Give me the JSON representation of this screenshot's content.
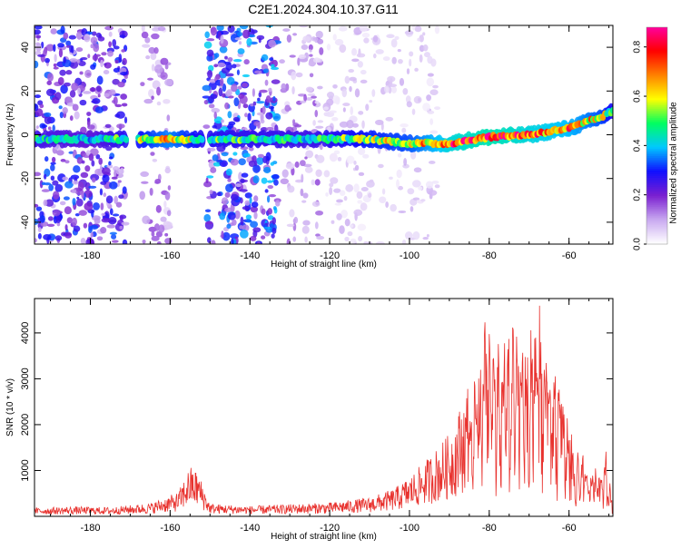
{
  "title": "C2E1.2024.304.10.37.G11",
  "chart_data": [
    {
      "type": "heatmap",
      "xlabel": "Height of straight line (km)",
      "ylabel": "Frequency (Hz)",
      "xlim": [
        -194,
        -49
      ],
      "ylim": [
        -50,
        50
      ],
      "x_ticks": [
        -180,
        -160,
        -140,
        -120,
        -100,
        -80,
        -60
      ],
      "y_ticks": [
        -40,
        -20,
        0,
        20,
        40
      ],
      "colorbar": {
        "label": "Normalized spectral amplitude",
        "range": [
          0,
          0.88
        ],
        "ticks": [
          0.0,
          0.2,
          0.4,
          0.6,
          0.8
        ],
        "colors": [
          "#ffffff",
          "#c8a8f0",
          "#7a1fd0",
          "#1010ff",
          "#00c8ff",
          "#00ff60",
          "#ffff00",
          "#ff8000",
          "#ff0000",
          "#ff00a0"
        ]
      },
      "ridge": {
        "x": [
          -194,
          -180,
          -170,
          -160,
          -152,
          -125,
          -110,
          -100,
          -90,
          -80,
          -70,
          -60,
          -52,
          -49
        ],
        "frequency": [
          -2,
          -2,
          -2,
          -2,
          -2,
          -2,
          -2,
          -4,
          -4,
          -1,
          0,
          3,
          8,
          11
        ],
        "amplitude": [
          0.45,
          0.4,
          0.5,
          0.65,
          0.5,
          0.45,
          0.55,
          0.6,
          0.75,
          0.8,
          0.75,
          0.7,
          0.6,
          0.5
        ]
      },
      "noise_regions": [
        {
          "x": [
            -194,
            -171
          ],
          "amplitude": 0.3
        },
        {
          "x": [
            -167,
            -160
          ],
          "amplitude": 0.15
        },
        {
          "x": [
            -151,
            -133
          ],
          "amplitude": 0.35
        },
        {
          "x": [
            -132,
            -122
          ],
          "amplitude": 0.15
        },
        {
          "x": [
            -121,
            -93
          ],
          "amplitude": 0.08
        }
      ]
    },
    {
      "type": "line",
      "xlabel": "Height of straight line (km)",
      "ylabel": "SNR (10 * v/v)",
      "xlim": [
        -194,
        -49
      ],
      "ylim": [
        0,
        4750
      ],
      "x_ticks": [
        -180,
        -160,
        -140,
        -120,
        -100,
        -80,
        -60
      ],
      "y_ticks": [
        1000,
        2000,
        3000,
        4000
      ],
      "color": "#e8322e",
      "x": [
        -194,
        -185,
        -175,
        -165,
        -158,
        -155,
        -153,
        -150,
        -140,
        -130,
        -120,
        -110,
        -104,
        -100,
        -95,
        -90,
        -86,
        -83,
        -81,
        -78,
        -75,
        -72,
        -70,
        -67,
        -65,
        -62,
        -58,
        -55,
        -52,
        -51,
        -49
      ],
      "y": [
        150,
        170,
        160,
        230,
        420,
        880,
        780,
        220,
        180,
        210,
        240,
        330,
        480,
        690,
        1050,
        1450,
        2150,
        3400,
        4450,
        3800,
        4300,
        4100,
        4000,
        4750,
        3900,
        3100,
        1650,
        1100,
        1050,
        1650,
        400
      ]
    }
  ]
}
